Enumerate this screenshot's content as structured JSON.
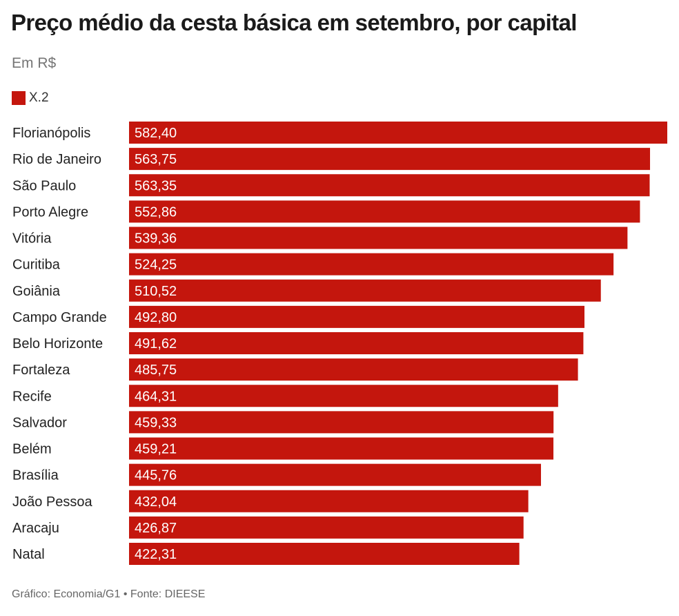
{
  "chart_data": {
    "type": "bar",
    "orientation": "horizontal",
    "title": "Preço médio da cesta básica em setembro, por capital",
    "subtitle": "Em R$",
    "categories": [
      "Florianópolis",
      "Rio de Janeiro",
      "São Paulo",
      "Porto Alegre",
      "Vitória",
      "Curitiba",
      "Goiânia",
      "Campo Grande",
      "Belo Horizonte",
      "Fortaleza",
      "Recife",
      "Salvador",
      "Belém",
      "Brasília",
      "João Pessoa",
      "Aracaju",
      "Natal"
    ],
    "series": [
      {
        "name": "X.2",
        "color": "#c4160d",
        "values": [
          582.4,
          563.75,
          563.35,
          552.86,
          539.36,
          524.25,
          510.52,
          492.8,
          491.62,
          485.75,
          464.31,
          459.33,
          459.21,
          445.76,
          432.04,
          426.87,
          422.31
        ],
        "value_labels": [
          "582,40",
          "563,75",
          "563,35",
          "552,86",
          "539,36",
          "524,25",
          "510,52",
          "492,80",
          "491,62",
          "485,75",
          "464,31",
          "459,33",
          "459,21",
          "445,76",
          "432,04",
          "426,87",
          "422,31"
        ]
      }
    ],
    "xlim": [
      0,
      582.4
    ],
    "grid": false,
    "legend": "top-left",
    "source": "Gráfico: Economia/G1 • Fonte: DIEESE"
  }
}
